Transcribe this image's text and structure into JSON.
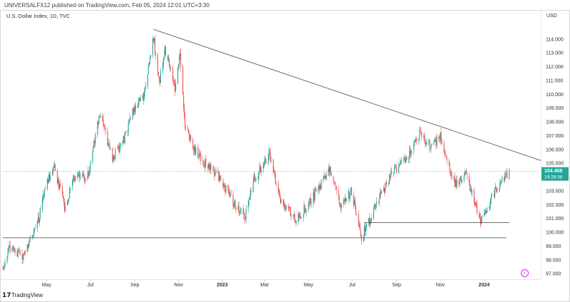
{
  "header": {
    "text": "UNIVERSALFX12 published on TradingView.com, Feb 05, 2024 12:01 UTC+3:30"
  },
  "branding": {
    "logo_text": "TradingView"
  },
  "colors": {
    "up": "#26a69a",
    "down": "#ef5350",
    "price_line": "#26a69a",
    "trendline": "#606060",
    "support": "#404040"
  },
  "chart_data": {
    "type": "candlestick",
    "title": "U.S. Dollar Index, 1D, TVC",
    "unit": "USD",
    "ylim": [
      96.6,
      116.0
    ],
    "y_ticks": [
      "97.000",
      "98.000",
      "99.000",
      "100.000",
      "101.000",
      "102.000",
      "103.000",
      "104.000",
      "105.000",
      "106.000",
      "107.000",
      "108.000",
      "109.000",
      "110.000",
      "111.000",
      "112.000",
      "113.000",
      "114.000"
    ],
    "x_ticks": [
      {
        "label": "May",
        "date": "2022-05-01"
      },
      {
        "label": "Jul",
        "date": "2022-07-01"
      },
      {
        "label": "Sep",
        "date": "2022-09-01"
      },
      {
        "label": "Nov",
        "date": "2022-11-01"
      },
      {
        "label": "2023",
        "date": "2023-01-01",
        "bold": true
      },
      {
        "label": "Mar",
        "date": "2023-03-01"
      },
      {
        "label": "May",
        "date": "2023-05-01"
      },
      {
        "label": "Jul",
        "date": "2023-07-01"
      },
      {
        "label": "Sep",
        "date": "2023-09-01"
      },
      {
        "label": "Nov",
        "date": "2023-11-01"
      },
      {
        "label": "2024",
        "date": "2024-01-01",
        "bold": true
      }
    ],
    "date_range": [
      "2022-03-01",
      "2024-02-05"
    ],
    "x_max_date": "2024-03-20",
    "close_path": [
      [
        "2022-03-01",
        97.5
      ],
      [
        "2022-03-10",
        98.8
      ],
      [
        "2022-03-20",
        98.6
      ],
      [
        "2022-03-31",
        98.3
      ],
      [
        "2022-04-10",
        99.8
      ],
      [
        "2022-04-20",
        100.9
      ],
      [
        "2022-04-28",
        103.3
      ],
      [
        "2022-05-12",
        104.7
      ],
      [
        "2022-05-26",
        101.8
      ],
      [
        "2022-06-10",
        104.2
      ],
      [
        "2022-06-27",
        103.9
      ],
      [
        "2022-07-14",
        108.5
      ],
      [
        "2022-08-01",
        105.4
      ],
      [
        "2022-08-15",
        106.5
      ],
      [
        "2022-08-29",
        108.8
      ],
      [
        "2022-09-14",
        109.8
      ],
      [
        "2022-09-27",
        114.1
      ],
      [
        "2022-10-05",
        110.8
      ],
      [
        "2022-10-13",
        113.3
      ],
      [
        "2022-10-27",
        110.4
      ],
      [
        "2022-11-03",
        112.9
      ],
      [
        "2022-11-10",
        107.9
      ],
      [
        "2022-11-25",
        105.8
      ],
      [
        "2022-12-10",
        104.8
      ],
      [
        "2022-12-28",
        104.0
      ],
      [
        "2023-01-18",
        102.0
      ],
      [
        "2023-02-01",
        101.0
      ],
      [
        "2023-02-15",
        104.0
      ],
      [
        "2023-03-08",
        105.7
      ],
      [
        "2023-03-23",
        102.2
      ],
      [
        "2023-04-14",
        100.9
      ],
      [
        "2023-05-01",
        102.0
      ],
      [
        "2023-05-31",
        104.5
      ],
      [
        "2023-06-15",
        102.0
      ],
      [
        "2023-06-30",
        103.0
      ],
      [
        "2023-07-14",
        99.6
      ],
      [
        "2023-07-31",
        101.6
      ],
      [
        "2023-08-25",
        104.2
      ],
      [
        "2023-09-15",
        105.3
      ],
      [
        "2023-10-03",
        107.2
      ],
      [
        "2023-10-18",
        106.2
      ],
      [
        "2023-11-01",
        106.9
      ],
      [
        "2023-11-21",
        103.4
      ],
      [
        "2023-12-06",
        104.2
      ],
      [
        "2023-12-27",
        100.7
      ],
      [
        "2024-01-10",
        102.4
      ],
      [
        "2024-01-24",
        103.6
      ],
      [
        "2024-02-05",
        104.4
      ]
    ],
    "current_price": {
      "value": "104.408",
      "number": 104.408,
      "countdown": "19:28:38"
    },
    "trendline": {
      "from": [
        "2022-09-27",
        114.7
      ],
      "to": [
        "2024-03-20",
        105.2
      ]
    },
    "support_lines": [
      {
        "from": [
          "2022-03-01",
          99.6
        ],
        "to": [
          "2024-02-01",
          99.6
        ]
      },
      {
        "from": [
          "2023-07-18",
          100.7
        ],
        "to": [
          "2024-02-05",
          100.7
        ]
      }
    ]
  }
}
